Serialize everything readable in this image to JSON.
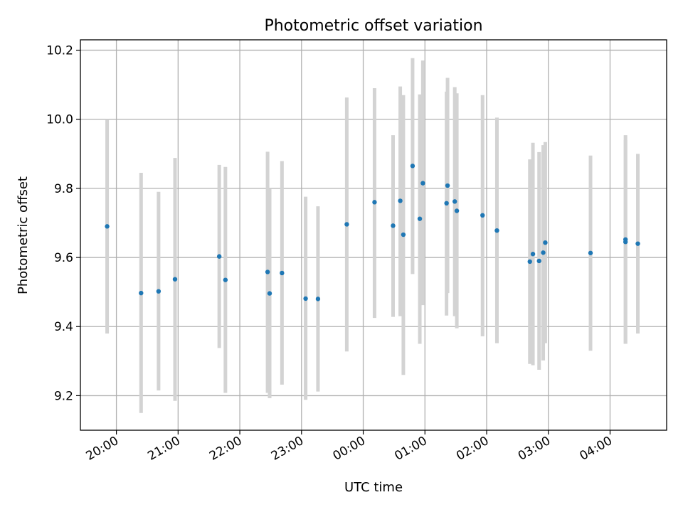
{
  "chart_data": {
    "type": "scatter",
    "title": "Photometric offset variation",
    "xlabel": "UTC time",
    "ylabel": "Photometric offset",
    "grid": true,
    "x_unit": "UTC time (HH:MM), night spanning midnight",
    "xlim": [
      "19:25",
      "04:55"
    ],
    "ylim": [
      9.1,
      10.23
    ],
    "x_ticks": [
      "20:00",
      "21:00",
      "22:00",
      "23:00",
      "00:00",
      "01:00",
      "02:00",
      "03:00",
      "04:00"
    ],
    "y_ticks": [
      "9.2",
      "9.4",
      "9.6",
      "9.8",
      "10.0",
      "10.2"
    ],
    "point_color": "#1f77b4",
    "errorbar_color": "#d3d3d3",
    "points": [
      {
        "x": "19:51",
        "y": 9.69,
        "low": 9.38,
        "high": 10.0
      },
      {
        "x": "20:24",
        "y": 9.497,
        "low": 9.15,
        "high": 9.845
      },
      {
        "x": "20:41",
        "y": 9.502,
        "low": 9.215,
        "high": 9.79
      },
      {
        "x": "20:57",
        "y": 9.537,
        "low": 9.185,
        "high": 9.888
      },
      {
        "x": "21:40",
        "y": 9.603,
        "low": 9.338,
        "high": 9.868
      },
      {
        "x": "21:46",
        "y": 9.535,
        "low": 9.208,
        "high": 9.862
      },
      {
        "x": "22:27",
        "y": 9.558,
        "low": 9.208,
        "high": 9.906
      },
      {
        "x": "22:29",
        "y": 9.496,
        "low": 9.193,
        "high": 9.8
      },
      {
        "x": "22:41",
        "y": 9.555,
        "low": 9.232,
        "high": 9.879
      },
      {
        "x": "23:04",
        "y": 9.481,
        "low": 9.188,
        "high": 9.776
      },
      {
        "x": "23:16",
        "y": 9.48,
        "low": 9.212,
        "high": 9.748
      },
      {
        "x": "23:44",
        "y": 9.696,
        "low": 9.328,
        "high": 10.063
      },
      {
        "x": "00:11",
        "y": 9.76,
        "low": 9.425,
        "high": 10.09
      },
      {
        "x": "00:29",
        "y": 9.692,
        "low": 9.428,
        "high": 9.954
      },
      {
        "x": "00:36",
        "y": 9.764,
        "low": 9.43,
        "high": 10.095
      },
      {
        "x": "00:39",
        "y": 9.666,
        "low": 9.26,
        "high": 10.07
      },
      {
        "x": "00:48",
        "y": 9.865,
        "low": 9.552,
        "high": 10.177
      },
      {
        "x": "00:55",
        "y": 9.712,
        "low": 9.35,
        "high": 10.072
      },
      {
        "x": "00:58",
        "y": 9.815,
        "low": 9.462,
        "high": 10.17
      },
      {
        "x": "01:21",
        "y": 9.757,
        "low": 9.432,
        "high": 10.08
      },
      {
        "x": "01:22",
        "y": 9.808,
        "low": 9.497,
        "high": 10.12
      },
      {
        "x": "01:29",
        "y": 9.762,
        "low": 9.43,
        "high": 10.093
      },
      {
        "x": "01:31",
        "y": 9.735,
        "low": 9.395,
        "high": 10.075
      },
      {
        "x": "01:56",
        "y": 9.722,
        "low": 9.372,
        "high": 10.07
      },
      {
        "x": "02:10",
        "y": 9.678,
        "low": 9.352,
        "high": 10.005
      },
      {
        "x": "02:42",
        "y": 9.588,
        "low": 9.292,
        "high": 9.884
      },
      {
        "x": "02:45",
        "y": 9.61,
        "low": 9.288,
        "high": 9.932
      },
      {
        "x": "02:51",
        "y": 9.59,
        "low": 9.275,
        "high": 9.905
      },
      {
        "x": "02:55",
        "y": 9.614,
        "low": 9.302,
        "high": 9.925
      },
      {
        "x": "02:57",
        "y": 9.643,
        "low": 9.352,
        "high": 9.934
      },
      {
        "x": "03:41",
        "y": 9.613,
        "low": 9.33,
        "high": 9.895
      },
      {
        "x": "04:15",
        "y": 9.652,
        "low": 9.35,
        "high": 9.954
      },
      {
        "x": "04:15",
        "y": 9.645,
        "low": 9.35,
        "high": 9.94
      },
      {
        "x": "04:27",
        "y": 9.64,
        "low": 9.38,
        "high": 9.9
      }
    ]
  }
}
